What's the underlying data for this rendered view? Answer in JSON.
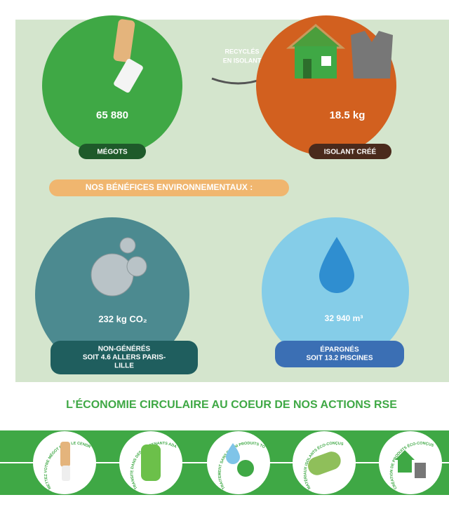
{
  "top": {
    "arrow_text": [
      "RECYCLÉS",
      "EN ISOLANT"
    ],
    "left": {
      "value": "65 880",
      "label": "MÉGOTS"
    },
    "right": {
      "value": "18.5 kg",
      "label": "ISOLANT CRÉÉ"
    }
  },
  "benefits": {
    "title": "NOS BÉNÉFICES ENVIRONNEMENTAUX :",
    "left": {
      "value": "232 kg CO₂",
      "label": [
        "NON-GÉNÉRÉS",
        "SOIT 4.6 ALLERS PARIS-",
        "LILLE"
      ]
    },
    "right": {
      "value": "32 940 m³",
      "label": [
        "ÉPARGNÉS",
        "SOIT 13.2 PISCINES"
      ]
    }
  },
  "circular": {
    "title": "L’ÉCONOMIE CIRCULAIRE AU COEUR DE NOS ACTIONS RSE",
    "steps": [
      "METTEZ VOTRE MÉGOT DANS LE CENDRIER",
      "TRANSITE DANS DES CONTENANTS ADAPTÉS",
      "TRAITEMENT SANS EAU NI PRODUITS TOXIQUES",
      "MATÉRIAUX ISOLANTS ÉCO-CONÇUS",
      "CRÉATION DE PRODUITS ÉCO-CONÇUS"
    ]
  }
}
